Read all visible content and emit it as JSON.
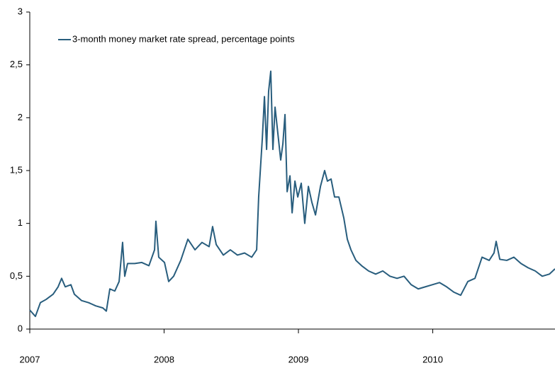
{
  "chart_data": {
    "type": "line",
    "x": [
      2007.0,
      2007.042,
      2007.079,
      2007.121,
      2007.174,
      2007.211,
      2007.237,
      2007.264,
      2007.306,
      2007.332,
      2007.385,
      2007.438,
      2007.491,
      2007.544,
      2007.57,
      2007.596,
      2007.633,
      2007.665,
      2007.691,
      2007.707,
      2007.728,
      2007.781,
      2007.834,
      2007.887,
      2007.929,
      2007.939,
      2007.96,
      2008.003,
      2008.034,
      2008.071,
      2008.124,
      2008.177,
      2008.23,
      2008.282,
      2008.335,
      2008.361,
      2008.388,
      2008.441,
      2008.493,
      2008.546,
      2008.599,
      2008.652,
      2008.689,
      2008.704,
      2008.731,
      2008.747,
      2008.763,
      2008.778,
      2008.794,
      2008.81,
      2008.826,
      2008.847,
      2008.868,
      2008.884,
      2008.9,
      2008.916,
      2008.937,
      2008.953,
      2008.974,
      2008.995,
      2009.021,
      2009.047,
      2009.074,
      2009.1,
      2009.127,
      2009.164,
      2009.195,
      2009.216,
      2009.243,
      2009.269,
      2009.301,
      2009.338,
      2009.364,
      2009.391,
      2009.428,
      2009.47,
      2009.522,
      2009.575,
      2009.628,
      2009.681,
      2009.734,
      2009.786,
      2009.839,
      2009.892,
      2009.945,
      2009.997,
      2010.05,
      2010.103,
      2010.156,
      2010.208,
      2010.261,
      2010.314,
      2010.367,
      2010.42,
      2010.456,
      2010.472,
      2010.499,
      2010.551,
      2010.604,
      2010.657,
      2010.71,
      2010.763,
      2010.815,
      2010.868,
      2010.91
    ],
    "series": [
      {
        "name": "3-month money market rate spread, percentage points",
        "color": "#285d7d",
        "values": [
          0.18,
          0.12,
          0.25,
          0.28,
          0.33,
          0.4,
          0.48,
          0.4,
          0.42,
          0.33,
          0.27,
          0.25,
          0.22,
          0.2,
          0.17,
          0.38,
          0.36,
          0.45,
          0.82,
          0.5,
          0.62,
          0.62,
          0.63,
          0.6,
          0.75,
          1.02,
          0.68,
          0.63,
          0.45,
          0.5,
          0.65,
          0.85,
          0.75,
          0.82,
          0.78,
          0.97,
          0.8,
          0.7,
          0.75,
          0.7,
          0.72,
          0.68,
          0.75,
          1.25,
          1.8,
          2.2,
          1.7,
          2.25,
          2.44,
          1.7,
          2.1,
          1.85,
          1.6,
          1.75,
          2.03,
          1.3,
          1.45,
          1.1,
          1.4,
          1.25,
          1.38,
          1.0,
          1.35,
          1.2,
          1.08,
          1.35,
          1.5,
          1.4,
          1.42,
          1.25,
          1.25,
          1.05,
          0.85,
          0.75,
          0.65,
          0.6,
          0.55,
          0.52,
          0.55,
          0.5,
          0.48,
          0.5,
          0.42,
          0.38,
          0.4,
          0.42,
          0.44,
          0.4,
          0.35,
          0.32,
          0.45,
          0.48,
          0.68,
          0.65,
          0.72,
          0.83,
          0.66,
          0.65,
          0.68,
          0.62,
          0.58,
          0.55,
          0.5,
          0.52,
          0.57
        ]
      }
    ],
    "xlim": [
      2007,
      2010.91
    ],
    "xticks": [
      2007,
      2008,
      2009,
      2010
    ],
    "ylim": [
      0,
      3
    ],
    "yticks": [
      0,
      {
        "value": 0.5,
        "label": "0,5"
      },
      1,
      {
        "value": 1.5,
        "label": "1,5"
      },
      2,
      {
        "value": 2.5,
        "label": "2,5"
      },
      3
    ],
    "grid": false,
    "legend": "top-left"
  }
}
